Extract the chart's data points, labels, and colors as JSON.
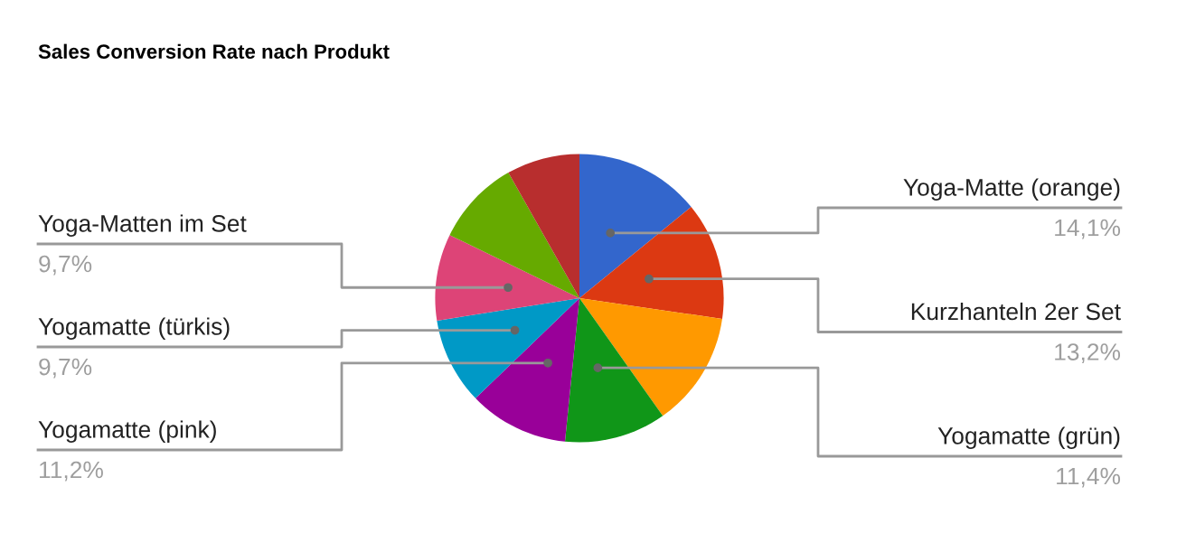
{
  "chart_data": {
    "type": "pie",
    "title": "Sales Conversion Rate nach Produkt",
    "categories": [
      "Yoga-Matte (orange)",
      "Kurzhanteln 2er Set",
      null,
      "Yogamatte (grün)",
      "Yogamatte (pink)",
      "Yogamatte (türkis)",
      "Yoga-Matten im Set",
      null,
      null
    ],
    "values": [
      14.1,
      13.2,
      12.9,
      11.4,
      11.2,
      9.7,
      9.7,
      9.6,
      8.2
    ],
    "value_labels": [
      "14,1%",
      "13,2%",
      null,
      "11,4%",
      "11,2%",
      "9,7%",
      "9,7%",
      null,
      null
    ],
    "colors": [
      "#3366cc",
      "#dc3912",
      "#ff9900",
      "#109618",
      "#990099",
      "#0099c6",
      "#dd4477",
      "#66aa00",
      "#b82e2e"
    ],
    "legend": false
  }
}
